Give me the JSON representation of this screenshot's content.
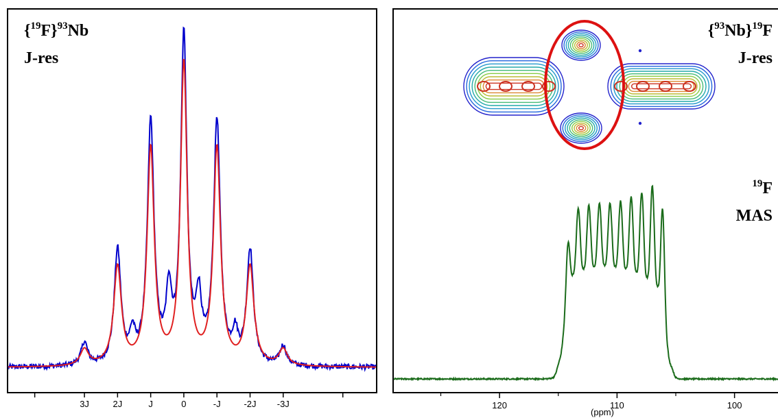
{
  "chart_data": [
    {
      "type": "line",
      "panel": "left",
      "label_line1": [
        "{",
        "19",
        "F}",
        "93",
        "Nb"
      ],
      "label_line2": "J-res",
      "tick_labels": [
        "3J",
        "2J",
        "J",
        "0",
        "-J",
        "-2J",
        "-3J"
      ],
      "x": [
        -3,
        -2,
        -1,
        0,
        1,
        2,
        3
      ],
      "xlim": [
        -5.3,
        5.8
      ],
      "ylim": [
        -0.02,
        1.03
      ],
      "series": [
        {
          "color": "#0000cc",
          "peaks": [
            {
              "x": 0,
              "height": 1.0,
              "width": 0.11
            },
            {
              "x": -1,
              "height": 0.74,
              "width": 0.12
            },
            {
              "x": 1,
              "height": 0.74,
              "width": 0.12
            },
            {
              "x": -2,
              "height": 0.35,
              "width": 0.12
            },
            {
              "x": 2,
              "height": 0.35,
              "width": 0.12
            },
            {
              "x": -3,
              "height": 0.07,
              "width": 0.12
            },
            {
              "x": 3,
              "height": 0.06,
              "width": 0.12
            },
            {
              "x": -0.45,
              "height": 0.2,
              "width": 0.1
            },
            {
              "x": 0.45,
              "height": 0.18,
              "width": 0.1
            },
            {
              "x": -1.55,
              "height": 0.08,
              "width": 0.1
            },
            {
              "x": 1.55,
              "height": 0.08,
              "width": 0.1
            }
          ],
          "noise": 0.008
        },
        {
          "color": "#e02020",
          "peaks": [
            {
              "x": 0,
              "height": 0.92,
              "width": 0.12
            },
            {
              "x": -1,
              "height": 0.66,
              "width": 0.13
            },
            {
              "x": 1,
              "height": 0.66,
              "width": 0.13
            },
            {
              "x": -2,
              "height": 0.3,
              "width": 0.14
            },
            {
              "x": 2,
              "height": 0.3,
              "width": 0.14
            },
            {
              "x": -3,
              "height": 0.05,
              "width": 0.15
            },
            {
              "x": 3,
              "height": 0.05,
              "width": 0.15
            }
          ],
          "noise": 0
        }
      ]
    },
    {
      "type": "line",
      "panel": "right",
      "label_top_line1": [
        "{",
        "93",
        "Nb}",
        "19",
        "F"
      ],
      "label_top_line2": "J-res",
      "label_mid_line1": [
        "19",
        "F"
      ],
      "label_mid_line2": "MAS",
      "xlabel": "(ppm)",
      "tick_labels": [
        "120",
        "110",
        "100"
      ],
      "x": [
        120,
        110,
        100
      ],
      "xlim": [
        129,
        96.3
      ],
      "series": [
        {
          "color": "#1a6b1a",
          "peaks_ppm": [
            114.2,
            113.3,
            112.4,
            111.5,
            110.6,
            109.7,
            108.8,
            107.9,
            107.0,
            106.1
          ],
          "peak_heights": [
            0.78,
            0.8,
            0.81,
            0.82,
            0.82,
            0.83,
            0.85,
            0.87,
            0.9,
            0.93
          ],
          "trough_heights": [
            0.5,
            0.51,
            0.52,
            0.53,
            0.53,
            0.52,
            0.51,
            0.49,
            0.46,
            0.42
          ],
          "band_ppm": [
            114.5,
            105.8
          ],
          "baseline": 0.0
        }
      ],
      "contour_2d": {
        "type": "heatmap",
        "highlight_ring_color": "#dd1111",
        "level_colors": [
          "#2222cc",
          "#2266dd",
          "#2299cc",
          "#22aaaa",
          "#44bb77",
          "#88cc44",
          "#bbbb33",
          "#dd8833",
          "#cc3322"
        ]
      }
    }
  ]
}
